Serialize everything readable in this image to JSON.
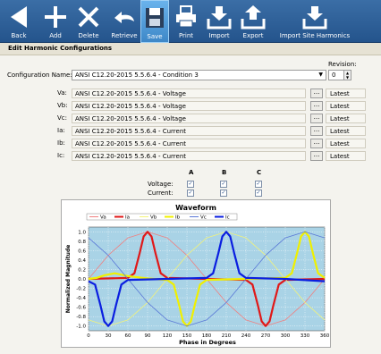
{
  "toolbar": {
    "buttons": [
      {
        "label": "Back",
        "icon": "back-arrow-icon"
      },
      {
        "label": "Add",
        "icon": "plus-icon"
      },
      {
        "label": "Delete",
        "icon": "x-icon"
      },
      {
        "label": "Retrieve",
        "icon": "retrieve-arrow-icon"
      },
      {
        "label": "Save",
        "icon": "floppy-disk-icon",
        "active": true
      },
      {
        "label": "Print",
        "icon": "printer-icon"
      },
      {
        "label": "Import",
        "icon": "import-tray-icon"
      },
      {
        "label": "Export",
        "icon": "export-tray-icon"
      },
      {
        "label": "Import Site Harmonics",
        "icon": "import-tray-icon"
      }
    ]
  },
  "panel": {
    "title": "Edit Harmonic Configurations"
  },
  "config": {
    "name_label": "Configuration Name:",
    "name_value": "ANSI C12.20-2015 5.5.6.4 - Condition 3",
    "revision_label": "Revision:",
    "revision_value": "0"
  },
  "rows": [
    {
      "label": "Va:",
      "value": "ANSI C12.20-2015 5.5.6.4 - Voltage",
      "browse": "...",
      "status": "Latest"
    },
    {
      "label": "Vb:",
      "value": "ANSI C12.20-2015 5.5.6.4 - Voltage",
      "browse": "...",
      "status": "Latest"
    },
    {
      "label": "Vc:",
      "value": "ANSI C12.20-2015 5.5.6.4 - Voltage",
      "browse": "...",
      "status": "Latest"
    },
    {
      "label": "Ia:",
      "value": "ANSI C12.20-2015 5.5.6.4 - Current",
      "browse": "...",
      "status": "Latest"
    },
    {
      "label": "Ib:",
      "value": "ANSI C12.20-2015 5.5.6.4 - Current",
      "browse": "...",
      "status": "Latest"
    },
    {
      "label": "Ic:",
      "value": "ANSI C12.20-2015 5.5.6.4 - Current",
      "browse": "...",
      "status": "Latest"
    }
  ],
  "phases": {
    "columns": [
      "A",
      "B",
      "C"
    ],
    "voltage_label": "Voltage:",
    "current_label": "Current:",
    "voltage_checked": [
      true,
      true,
      true
    ],
    "current_checked": [
      true,
      true,
      true
    ],
    "check_glyph": "✓"
  },
  "chart_data": {
    "type": "line",
    "title": "Waveform",
    "xlabel": "Phase in Degrees",
    "ylabel": "Normalized Magnitude",
    "xlim": [
      0,
      360
    ],
    "ylim": [
      -1.1,
      1.1
    ],
    "xticks": [
      0,
      30,
      60,
      90,
      120,
      150,
      180,
      210,
      240,
      270,
      300,
      330,
      360
    ],
    "yticks": [
      1.0,
      0.8,
      0.6,
      0.4,
      0.2,
      0.0,
      -0.2,
      -0.4,
      -0.6,
      -0.8,
      -1.0
    ],
    "grid": true,
    "legend_position": "top",
    "background": "#a9d3e6",
    "series": [
      {
        "name": "Va",
        "color": "#f08080",
        "style": "thin",
        "points": [
          [
            0,
            0
          ],
          [
            30,
            0.5
          ],
          [
            60,
            0.87
          ],
          [
            90,
            1.0
          ],
          [
            120,
            0.87
          ],
          [
            150,
            0.5
          ],
          [
            180,
            0
          ],
          [
            210,
            -0.5
          ],
          [
            240,
            -0.87
          ],
          [
            270,
            -1.0
          ],
          [
            300,
            -0.87
          ],
          [
            330,
            -0.5
          ],
          [
            360,
            0
          ]
        ]
      },
      {
        "name": "Ia",
        "color": "#e01818",
        "style": "thick",
        "points": [
          [
            0,
            0
          ],
          [
            60,
            0.02
          ],
          [
            70,
            0.12
          ],
          [
            78,
            0.55
          ],
          [
            84,
            0.9
          ],
          [
            90,
            1.0
          ],
          [
            96,
            0.9
          ],
          [
            102,
            0.55
          ],
          [
            110,
            0.12
          ],
          [
            120,
            0.02
          ],
          [
            180,
            0
          ],
          [
            240,
            -0.02
          ],
          [
            250,
            -0.12
          ],
          [
            258,
            -0.55
          ],
          [
            264,
            -0.9
          ],
          [
            270,
            -1.0
          ],
          [
            276,
            -0.9
          ],
          [
            282,
            -0.55
          ],
          [
            290,
            -0.12
          ],
          [
            300,
            -0.02
          ],
          [
            360,
            0
          ]
        ]
      },
      {
        "name": "Vb",
        "color": "#f3f37a",
        "style": "thin",
        "points": [
          [
            0,
            -0.87
          ],
          [
            30,
            -1.0
          ],
          [
            60,
            -0.87
          ],
          [
            90,
            -0.5
          ],
          [
            120,
            0
          ],
          [
            150,
            0.5
          ],
          [
            180,
            0.87
          ],
          [
            210,
            1.0
          ],
          [
            240,
            0.87
          ],
          [
            270,
            0.5
          ],
          [
            300,
            0
          ],
          [
            330,
            -0.5
          ],
          [
            360,
            -0.87
          ]
        ]
      },
      {
        "name": "Ib",
        "color": "#f0f000",
        "style": "thick",
        "points": [
          [
            0,
            0
          ],
          [
            12,
            0.02
          ],
          [
            25,
            0.08
          ],
          [
            40,
            0.12
          ],
          [
            60,
            0.06
          ],
          [
            90,
            0.01
          ],
          [
            120,
            -0.02
          ],
          [
            130,
            -0.12
          ],
          [
            138,
            -0.55
          ],
          [
            144,
            -0.9
          ],
          [
            150,
            -1.0
          ],
          [
            156,
            -0.9
          ],
          [
            162,
            -0.55
          ],
          [
            170,
            -0.12
          ],
          [
            180,
            -0.02
          ],
          [
            240,
            0
          ],
          [
            300,
            0.02
          ],
          [
            310,
            0.12
          ],
          [
            318,
            0.55
          ],
          [
            324,
            0.9
          ],
          [
            330,
            1.0
          ],
          [
            336,
            0.9
          ],
          [
            342,
            0.55
          ],
          [
            350,
            0.12
          ],
          [
            360,
            0.02
          ]
        ]
      },
      {
        "name": "Vc",
        "color": "#5a78d6",
        "style": "thin",
        "points": [
          [
            0,
            0.87
          ],
          [
            30,
            0.5
          ],
          [
            60,
            0
          ],
          [
            90,
            -0.5
          ],
          [
            120,
            -0.87
          ],
          [
            150,
            -1.0
          ],
          [
            180,
            -0.87
          ],
          [
            210,
            -0.5
          ],
          [
            240,
            0
          ],
          [
            270,
            0.5
          ],
          [
            300,
            0.87
          ],
          [
            330,
            1.0
          ],
          [
            360,
            0.87
          ]
        ]
      },
      {
        "name": "Ic",
        "color": "#0a1ee0",
        "style": "thick",
        "points": [
          [
            0,
            -0.05
          ],
          [
            10,
            -0.12
          ],
          [
            18,
            -0.55
          ],
          [
            24,
            -0.9
          ],
          [
            30,
            -1.0
          ],
          [
            36,
            -0.9
          ],
          [
            42,
            -0.55
          ],
          [
            50,
            -0.12
          ],
          [
            60,
            -0.02
          ],
          [
            120,
            0
          ],
          [
            180,
            0.02
          ],
          [
            190,
            0.12
          ],
          [
            198,
            0.55
          ],
          [
            204,
            0.9
          ],
          [
            210,
            1.0
          ],
          [
            216,
            0.9
          ],
          [
            222,
            0.55
          ],
          [
            230,
            0.12
          ],
          [
            240,
            0.02
          ],
          [
            300,
            0
          ],
          [
            360,
            -0.05
          ]
        ]
      }
    ]
  }
}
